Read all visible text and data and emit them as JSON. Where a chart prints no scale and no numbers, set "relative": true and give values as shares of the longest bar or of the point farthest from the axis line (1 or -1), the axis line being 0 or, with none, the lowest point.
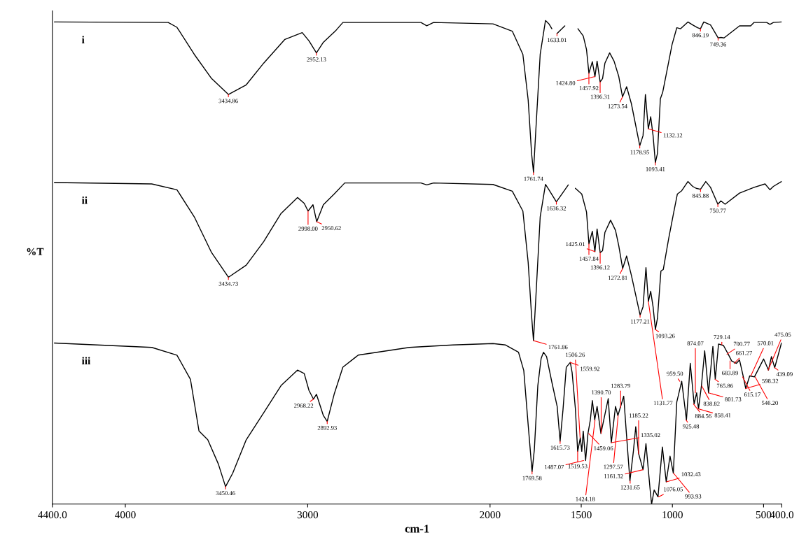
{
  "chart_data": {
    "type": "line",
    "relative": true,
    "xlabel": "cm-1",
    "ylabel": "%T",
    "xlim": [
      4400,
      400
    ],
    "xticks": [
      {
        "value": 4400,
        "label": "4400.0"
      },
      4000,
      3000,
      2000,
      1500,
      1000,
      500,
      {
        "value": 400,
        "label": "400.0"
      }
    ],
    "grid": false,
    "legend": false,
    "marker": "none",
    "line_style": "solid",
    "series": [
      {
        "name": "i",
        "color": "#000000",
        "x": [
          4389,
          3765,
          3717,
          3622,
          3527,
          3434.86,
          3337,
          3241,
          3125,
          3030,
          2993,
          2952.13,
          2914,
          2844,
          2807,
          2379,
          2347,
          2310,
          1984,
          1878,
          1820,
          1791,
          1772,
          1761.74,
          1749,
          1725,
          1696,
          1677,
          1661,
          1650,
          1633.01,
          1590,
          1550,
          1518,
          1489,
          1471,
          1457.92,
          1439,
          1424.8,
          1413,
          1396.31,
          1383,
          1370,
          1344,
          1320,
          1294,
          1273.54,
          1251,
          1225,
          1178.95,
          1161,
          1148,
          1132.12,
          1119,
          1106,
          1093.41,
          1082,
          1066,
          1053,
          1029,
          1002,
          976,
          955,
          915,
          889,
          862,
          846.19,
          828,
          791,
          749.36,
          734,
          717,
          632,
          571,
          552,
          483,
          465,
          446,
          402
        ],
        "values": [
          0.997,
          0.996,
          0.986,
          0.93,
          0.88,
          0.847,
          0.867,
          0.912,
          0.961,
          0.975,
          0.958,
          0.933,
          0.955,
          0.98,
          0.996,
          0.996,
          0.989,
          0.996,
          0.993,
          0.978,
          0.93,
          0.836,
          0.724,
          0.686,
          0.773,
          0.93,
          1.0,
          0.993,
          0.983,
          null,
          0.973,
          0.989,
          null,
          0.983,
          0.968,
          0.94,
          0.891,
          0.915,
          0.884,
          0.916,
          0.873,
          0.88,
          0.912,
          0.933,
          0.916,
          0.884,
          0.842,
          0.863,
          0.828,
          0.741,
          0.762,
          0.847,
          0.776,
          0.801,
          0.762,
          0.706,
          0.725,
          0.838,
          0.852,
          0.898,
          0.95,
          0.985,
          0.983,
          0.997,
          0.991,
          0.985,
          0.983,
          0.997,
          0.991,
          0.964,
          0.965,
          0.964,
          0.989,
          0.989,
          0.996,
          0.996,
          0.992,
          0.996,
          0.997
        ]
      },
      {
        "name": "ii",
        "color": "#000000",
        "x": [
          4389,
          3855,
          3717,
          3622,
          3527,
          3434.73,
          3337,
          3241,
          3146,
          3056,
          3019,
          2998.0,
          2971,
          2950.62,
          2914,
          2855,
          2797,
          2379,
          2347,
          2310,
          1984,
          1878,
          1820,
          1791,
          1772,
          1761.86,
          1749,
          1725,
          1696,
          1677,
          1636.32,
          1595,
          1571,
          1550,
          1532,
          1497,
          1471,
          1457.84,
          1439,
          1425.01,
          1413,
          1396.12,
          1383,
          1370,
          1339,
          1312,
          1294,
          1272.81,
          1251,
          1225,
          1177.21,
          1161,
          1145,
          1131.77,
          1119,
          1106,
          1093.26,
          1082,
          1063,
          1050,
          1021,
          995,
          973,
          949,
          915,
          889,
          870,
          845.88,
          817,
          791,
          750.77,
          734,
          711,
          632,
          552,
          492,
          465,
          446,
          402
        ],
        "values": [
          0.665,
          0.662,
          0.65,
          0.594,
          0.52,
          0.469,
          0.494,
          0.543,
          0.601,
          0.634,
          0.622,
          0.606,
          0.619,
          0.584,
          0.619,
          0.641,
          0.664,
          0.664,
          0.66,
          0.664,
          0.661,
          0.647,
          0.606,
          0.5,
          0.388,
          0.338,
          0.426,
          0.594,
          0.661,
          0.65,
          0.625,
          0.647,
          0.66,
          null,
          0.653,
          0.641,
          0.604,
          0.538,
          0.564,
          0.522,
          0.569,
          0.52,
          0.524,
          0.562,
          0.587,
          0.566,
          0.534,
          0.487,
          0.513,
          0.473,
          0.391,
          0.408,
          0.489,
          0.419,
          0.44,
          0.408,
          0.361,
          0.384,
          0.482,
          0.485,
          0.548,
          0.599,
          0.641,
          0.648,
          0.667,
          0.657,
          0.653,
          0.651,
          0.667,
          0.655,
          0.62,
          0.627,
          0.62,
          0.643,
          0.655,
          0.662,
          0.65,
          0.657,
          0.667
        ]
      },
      {
        "name": "iii",
        "color": "#000000",
        "x": [
          4389,
          3855,
          3717,
          3643,
          3596,
          3548,
          3490,
          3450.46,
          3411,
          3337,
          3241,
          3146,
          3056,
          3019,
          2993,
          2968.22,
          2952,
          2914,
          2892.93,
          2855,
          2807,
          2723,
          2442,
          2204,
          1984,
          1915,
          1844,
          1815,
          1791,
          1769.58,
          1757,
          1738,
          1720,
          1707,
          1690,
          1661,
          1632,
          1615.73,
          1600,
          1582,
          1559.92,
          1550,
          1532,
          1519.53,
          1505,
          1497,
          1489,
          1476,
          1463,
          1450,
          1439,
          1426,
          1413,
          1392,
          1352,
          1335.02,
          1312,
          1299,
          1267,
          1254,
          1233,
          1214,
          1201,
          1185,
          1161,
          1145,
          1121,
          1114,
          1100,
          1079,
          1055,
          1034,
          1013,
          995,
          976,
          949,
          923,
          902,
          881,
          867,
          857,
          841,
          823,
          802,
          778,
          765,
          747,
          720,
          694,
          675,
          649,
          632,
          611,
          598,
          576,
          550,
          500,
          473,
          457,
          439,
          402
        ],
        "values": [
          0.333,
          0.324,
          0.308,
          0.258,
          0.151,
          0.133,
          0.083,
          0.036,
          0.064,
          0.133,
          0.189,
          0.245,
          0.277,
          0.27,
          0.235,
          0.217,
          0.227,
          0.183,
          0.171,
          0.227,
          0.283,
          0.308,
          0.324,
          0.329,
          0.332,
          0.329,
          0.314,
          0.276,
          0.164,
          0.067,
          0.113,
          0.245,
          0.301,
          0.314,
          0.305,
          0.252,
          0.202,
          0.13,
          0.195,
          0.283,
          0.293,
          0.272,
          0.197,
          0.109,
          0.137,
          0.109,
          0.151,
          0.09,
          0.146,
          0.174,
          0.214,
          0.174,
          0.202,
          0.146,
          0.218,
          0.127,
          0.202,
          0.183,
          0.223,
          0.155,
          0.048,
          0.109,
          0.16,
          0.104,
          0.071,
          0.125,
          0.025,
          0.0,
          0.029,
          0.015,
          0.118,
          0.046,
          0.099,
          0.064,
          0.211,
          0.254,
          0.174,
          0.291,
          0.207,
          0.23,
          0.197,
          0.244,
          0.317,
          0.23,
          0.326,
          0.258,
          0.331,
          0.328,
          0.31,
          0.296,
          0.291,
          0.298,
          0.263,
          0.239,
          0.265,
          0.263,
          0.3,
          0.277,
          0.305,
          0.282,
          0.333
        ]
      }
    ],
    "annotations": [
      {
        "text": "3434.86",
        "x": 3434.86,
        "y": 0.847
      },
      {
        "text": "2952.13",
        "x": 2952.13,
        "y": 0.933
      },
      {
        "text": "1761.74",
        "x": 1761.74,
        "y": 0.686
      },
      {
        "text": "1633.01",
        "x": 1633.01,
        "y": 0.973
      },
      {
        "text": "1457.92",
        "x": 1457.92,
        "y": 0.891
      },
      {
        "text": "1424.80",
        "x": 1424.8,
        "y": 0.884
      },
      {
        "text": "1396.31",
        "x": 1396.31,
        "y": 0.873
      },
      {
        "text": "1273.54",
        "x": 1273.54,
        "y": 0.842
      },
      {
        "text": "1178.95",
        "x": 1178.95,
        "y": 0.741
      },
      {
        "text": "1132.12",
        "x": 1132.12,
        "y": 0.776
      },
      {
        "text": "1093.41",
        "x": 1093.41,
        "y": 0.706
      },
      {
        "text": "846.19",
        "x": 846.19,
        "y": 0.983
      },
      {
        "text": "749.36",
        "x": 749.36,
        "y": 0.964
      },
      {
        "text": "3434.73",
        "x": 3434.73,
        "y": 0.469
      },
      {
        "text": "2998.00",
        "x": 2998.0,
        "y": 0.606
      },
      {
        "text": "2950.62",
        "x": 2950.62,
        "y": 0.584
      },
      {
        "text": "1761.86",
        "x": 1761.86,
        "y": 0.338
      },
      {
        "text": "1636.32",
        "x": 1636.32,
        "y": 0.625
      },
      {
        "text": "1457.84",
        "x": 1457.84,
        "y": 0.538
      },
      {
        "text": "1425.01",
        "x": 1425.01,
        "y": 0.522
      },
      {
        "text": "1396.12",
        "x": 1396.12,
        "y": 0.52
      },
      {
        "text": "1272.81",
        "x": 1272.81,
        "y": 0.487
      },
      {
        "text": "1177.21",
        "x": 1177.21,
        "y": 0.391
      },
      {
        "text": "1131.77",
        "x": 1131.77,
        "y": 0.419
      },
      {
        "text": "1093.26",
        "x": 1093.26,
        "y": 0.361
      },
      {
        "text": "845.88",
        "x": 845.88,
        "y": 0.651
      },
      {
        "text": "750.77",
        "x": 750.77,
        "y": 0.62
      },
      {
        "text": "3450.46",
        "x": 3450.46,
        "y": 0.036
      },
      {
        "text": "2968.22",
        "x": 2968.22,
        "y": 0.217
      },
      {
        "text": "2892.93",
        "x": 2892.93,
        "y": 0.171
      },
      {
        "text": "1769.58",
        "x": 1769.58,
        "y": 0.067
      },
      {
        "text": "1615.73",
        "x": 1615.73,
        "y": 0.13
      },
      {
        "text": "1559.92",
        "x": 1559.92,
        "y": 0.293
      },
      {
        "text": "1519.53",
        "x": 1519.53,
        "y": 0.109
      },
      {
        "text": "1506.26",
        "x": 1506.26,
        "y": 0.137
      },
      {
        "text": "1487.07",
        "x": 1487.07,
        "y": 0.09
      },
      {
        "text": "1459.06",
        "x": 1459.06,
        "y": 0.146
      },
      {
        "text": "1424.18",
        "x": 1424.18,
        "y": 0.174
      },
      {
        "text": "1390.70",
        "x": 1390.7,
        "y": 0.146
      },
      {
        "text": "1335.02",
        "x": 1335.02,
        "y": 0.127
      },
      {
        "text": "1297.57",
        "x": 1297.57,
        "y": 0.183
      },
      {
        "text": "1283.79",
        "x": 1283.79,
        "y": 0.2
      },
      {
        "text": "1231.65",
        "x": 1231.65,
        "y": 0.048
      },
      {
        "text": "1185.22",
        "x": 1185.22,
        "y": 0.104
      },
      {
        "text": "1161.32",
        "x": 1161.32,
        "y": 0.071
      },
      {
        "text": "1076.05",
        "x": 1076.05,
        "y": 0.015
      },
      {
        "text": "1032.43",
        "x": 1032.43,
        "y": 0.046
      },
      {
        "text": "993.93",
        "x": 993.93,
        "y": 0.064
      },
      {
        "text": "959.50",
        "x": 959.5,
        "y": 0.254
      },
      {
        "text": "925.48",
        "x": 925.48,
        "y": 0.174
      },
      {
        "text": "884.56",
        "x": 884.56,
        "y": 0.207
      },
      {
        "text": "874.07",
        "x": 874.07,
        "y": 0.23
      },
      {
        "text": "858.41",
        "x": 858.41,
        "y": 0.197
      },
      {
        "text": "838.82",
        "x": 838.82,
        "y": 0.244
      },
      {
        "text": "801.73",
        "x": 801.73,
        "y": 0.23
      },
      {
        "text": "765.86",
        "x": 765.86,
        "y": 0.258
      },
      {
        "text": "729.14",
        "x": 729.14,
        "y": 0.33
      },
      {
        "text": "700.77",
        "x": 700.77,
        "y": 0.31
      },
      {
        "text": "683.89",
        "x": 683.89,
        "y": 0.296
      },
      {
        "text": "661.27",
        "x": 661.27,
        "y": 0.291
      },
      {
        "text": "615.17",
        "x": 615.17,
        "y": 0.263
      },
      {
        "text": "598.32",
        "x": 598.32,
        "y": 0.239
      },
      {
        "text": "570.01",
        "x": 570.01,
        "y": 0.265
      },
      {
        "text": "546.20",
        "x": 546.2,
        "y": 0.263
      },
      {
        "text": "475.05",
        "x": 475.05,
        "y": 0.277
      },
      {
        "text": "439.09",
        "x": 439.09,
        "y": 0.282
      }
    ]
  }
}
